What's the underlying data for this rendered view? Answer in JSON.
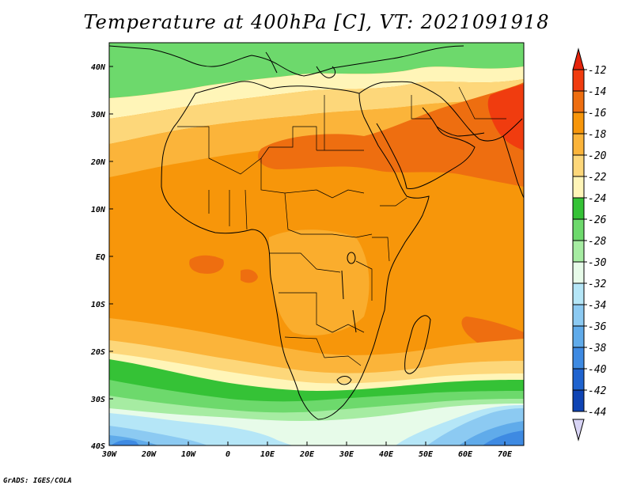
{
  "title": "Temperature at 400hPa [C], VT: 2021091918",
  "footer": "GrADS: IGES/COLA",
  "map": {
    "lat_labels": [
      "40N",
      "30N",
      "20N",
      "10N",
      "EQ",
      "10S",
      "20S",
      "30S",
      "40S"
    ],
    "lon_labels": [
      "30W",
      "20W",
      "10W",
      "0",
      "10E",
      "20E",
      "30E",
      "40E",
      "50E",
      "60E",
      "70E"
    ]
  },
  "colorbar": {
    "labels": [
      "-12",
      "-14",
      "-16",
      "-18",
      "-20",
      "-22",
      "-24",
      "-26",
      "-28",
      "-30",
      "-32",
      "-34",
      "-36",
      "-38",
      "-40",
      "-42",
      "-44"
    ],
    "colors": [
      "#f03c0f",
      "#ee6e10",
      "#f7960a",
      "#fbb43a",
      "#fdd77a",
      "#fff5b8",
      "#35c236",
      "#6dd96c",
      "#a6eca2",
      "#e7fbe9",
      "#b5e6f7",
      "#8ccaf2",
      "#60abea",
      "#3e8ae2",
      "#1f63cf",
      "#0f44b4",
      "#0a1c7a"
    ],
    "end_colors": {
      "top": "#e5230b",
      "bottom": "#d8d4f5"
    }
  }
}
